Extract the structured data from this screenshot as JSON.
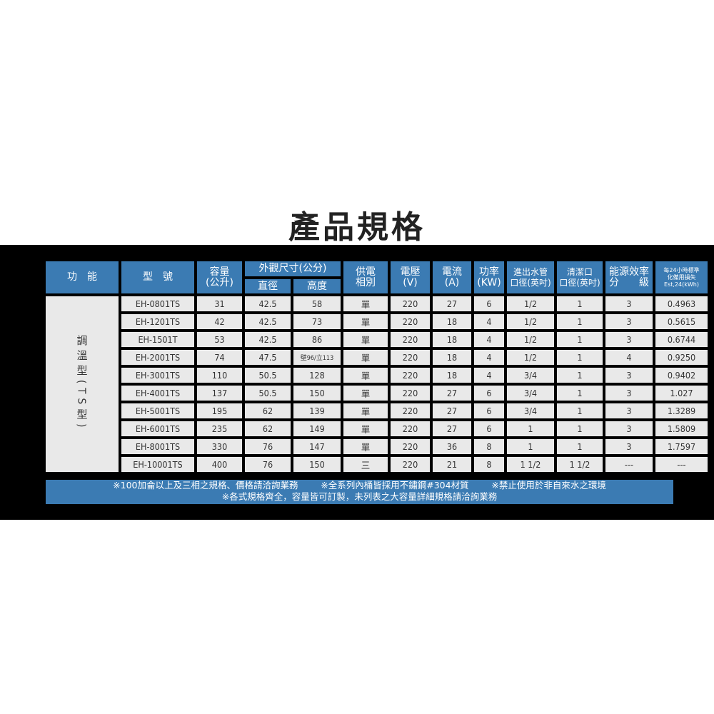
{
  "title": "產品規格",
  "headers": {
    "function": "功　能",
    "model": "型　號",
    "capacity": "容量",
    "capacity_unit": "(公升)",
    "dimensions": "外觀尺寸(公分)",
    "diameter": "直徑",
    "height": "高度",
    "phase": "供電",
    "phase2": "相別",
    "voltage": "電壓",
    "voltage_unit": "(V)",
    "current": "電流",
    "current_unit": "(A)",
    "power": "功率",
    "power_unit": "(KW)",
    "pipe": "進出水管",
    "pipe2": "口徑(英吋)",
    "clean": "清潔口",
    "clean2": "口徑(英吋)",
    "energy": "能源效率",
    "energy2": "分　　級",
    "loss1": "每24小時標準",
    "loss2": "化備用損失",
    "loss3": "Est,24(kWh)"
  },
  "category": "調溫型(TS型)",
  "rows": [
    [
      "EH-0801TS",
      "31",
      "42.5",
      "58",
      "單",
      "220",
      "27",
      "6",
      "1/2",
      "1",
      "3",
      "0.4963"
    ],
    [
      "EH-1201TS",
      "42",
      "42.5",
      "73",
      "單",
      "220",
      "18",
      "4",
      "1/2",
      "1",
      "3",
      "0.5615"
    ],
    [
      "EH-1501T",
      "53",
      "42.5",
      "86",
      "單",
      "220",
      "18",
      "4",
      "1/2",
      "1",
      "3",
      "0.6744"
    ],
    [
      "EH-2001TS",
      "74",
      "47.5",
      "壁96/立113",
      "單",
      "220",
      "18",
      "4",
      "1/2",
      "1",
      "4",
      "0.9250"
    ],
    [
      "EH-3001TS",
      "110",
      "50.5",
      "128",
      "單",
      "220",
      "18",
      "4",
      "3/4",
      "1",
      "3",
      "0.9402"
    ],
    [
      "EH-4001TS",
      "137",
      "50.5",
      "150",
      "單",
      "220",
      "27",
      "6",
      "3/4",
      "1",
      "3",
      "1.027"
    ],
    [
      "EH-5001TS",
      "195",
      "62",
      "139",
      "單",
      "220",
      "27",
      "6",
      "3/4",
      "1",
      "3",
      "1.3289"
    ],
    [
      "EH-6001TS",
      "235",
      "62",
      "149",
      "單",
      "220",
      "27",
      "6",
      "1",
      "1",
      "3",
      "1.5809"
    ],
    [
      "EH-8001TS",
      "330",
      "76",
      "147",
      "單",
      "220",
      "36",
      "8",
      "1",
      "1",
      "3",
      "1.7597"
    ],
    [
      "EH-10001TS",
      "400",
      "76",
      "150",
      "三",
      "220",
      "21",
      "8",
      "1 1/2",
      "1 1/2",
      "---",
      "---"
    ]
  ],
  "footer": {
    "line1": "※100加侖以上及三相之規格、價格請洽詢業務        ※全系列內桶皆採用不鏽鋼#304材質        ※禁止使用於非自來水之環境",
    "line2": "※各式規格齊全，容量皆可訂製，未列表之大容量詳細規格請洽詢業務"
  },
  "colors": {
    "header": "#3b7bb3",
    "cell": "#e9e9e9",
    "band": "#000000"
  }
}
